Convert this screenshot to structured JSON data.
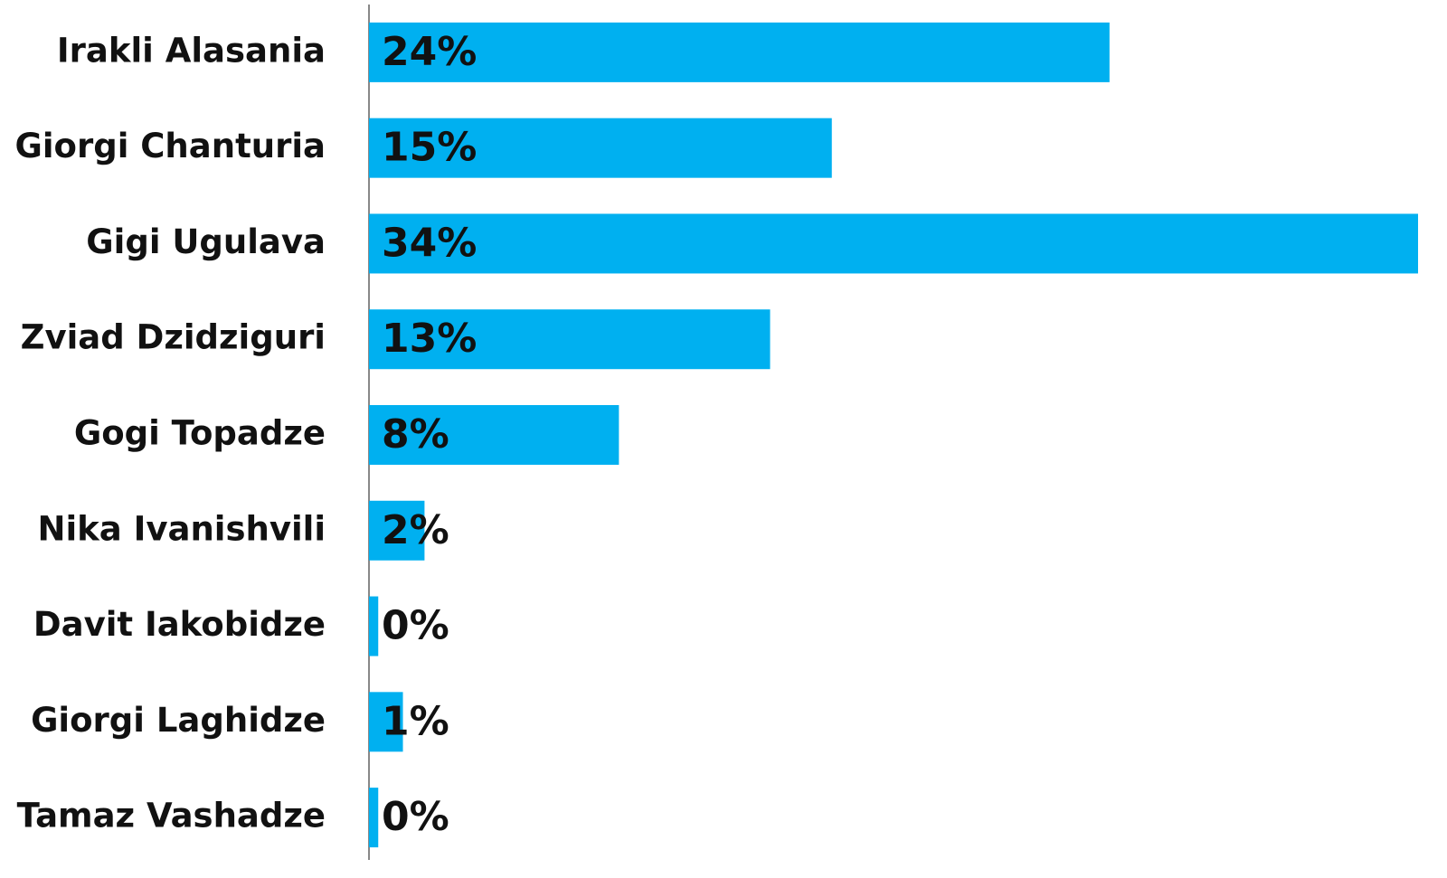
{
  "chart_data": {
    "type": "hbar",
    "categories": [
      "Irakli Alasania",
      "Giorgi Chanturia",
      "Gigi Ugulava",
      "Zviad Dzidziguri",
      "Gogi Topadze",
      "Nika Ivanishvili",
      "Davit Iakobidze",
      "Giorgi Laghidze",
      "Tamaz Vashadze"
    ],
    "values": [
      24,
      15,
      34,
      13,
      8.1,
      1.8,
      0.3,
      1.1,
      0.3
    ],
    "value_labels": [
      "24%",
      "15%",
      "34%",
      "13%",
      "8%",
      "2%",
      "0%",
      "1%",
      "0%"
    ],
    "color": "#00b0f0",
    "xlim": [
      0,
      34
    ]
  }
}
